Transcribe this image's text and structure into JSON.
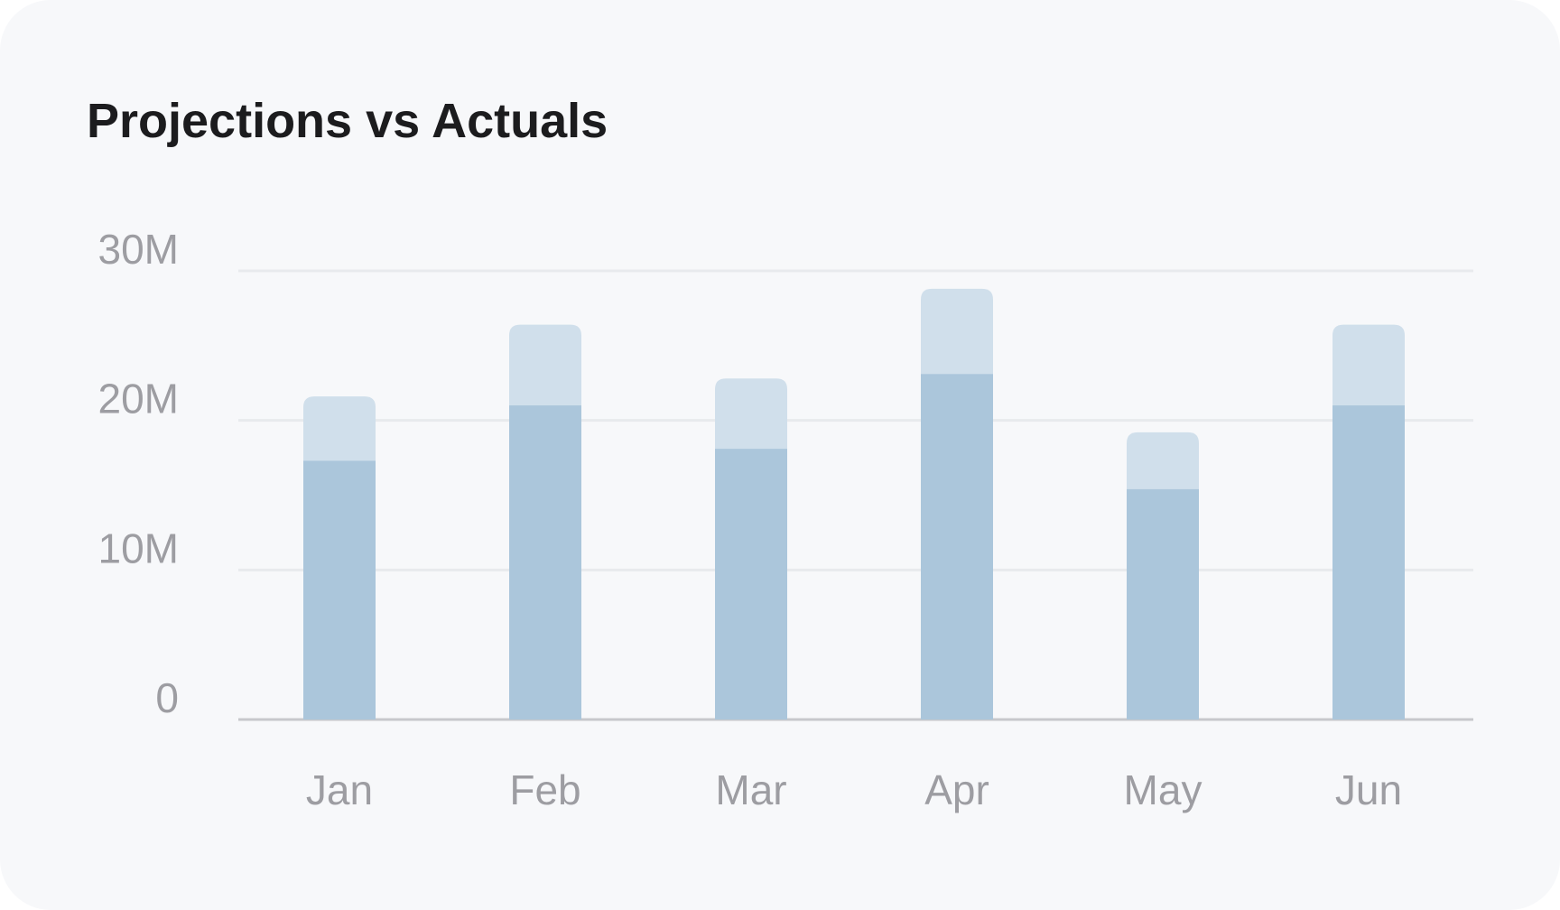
{
  "card": {
    "title": "Projections vs Actuals"
  },
  "chart_data": {
    "type": "bar",
    "title": "Projections vs Actuals",
    "categories": [
      "Jan",
      "Feb",
      "Mar",
      "Apr",
      "May",
      "Jun"
    ],
    "series": [
      {
        "values": [
          17.3,
          21.0,
          18.1,
          23.1,
          15.4,
          21.0
        ]
      },
      {
        "values": [
          21.6,
          26.4,
          22.8,
          28.8,
          19.2,
          26.4
        ]
      }
    ],
    "stacking": "overlay",
    "ylim": [
      0,
      30
    ],
    "yticks": [
      0,
      10,
      20,
      30
    ],
    "ytick_labels": [
      "0",
      "10M",
      "20M",
      "30M"
    ],
    "xlabel": "",
    "ylabel": "",
    "grid": true,
    "colors": {
      "actual": "#abc6db",
      "projection": "#d0dfeb",
      "grid": "#e8eaed",
      "axis": "#c7c8cc",
      "tick_text": "#9d9da2"
    }
  }
}
